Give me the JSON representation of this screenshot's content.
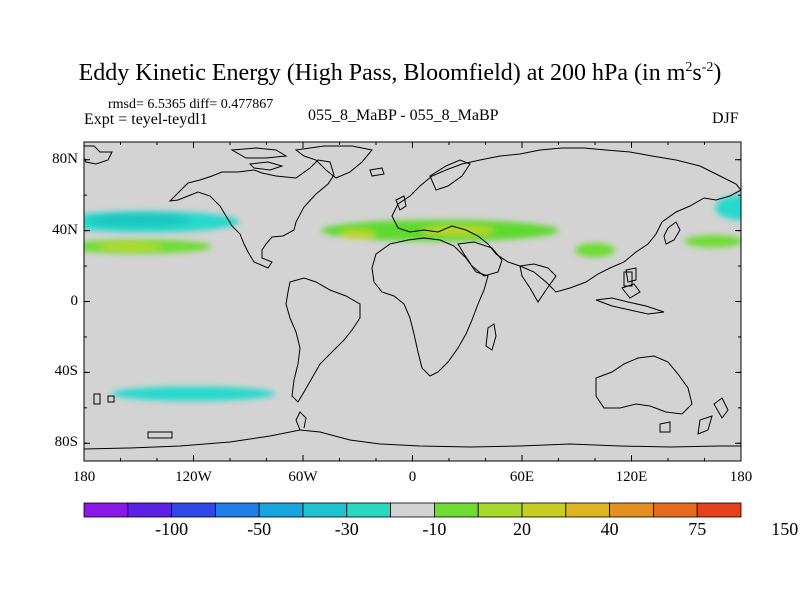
{
  "title": {
    "main": "Eddy Kinetic Energy (High Pass, Bloomfield) at 200 hPa (in m",
    "sup1": "2",
    "mid": "s",
    "sup2": "-2",
    "end": ")"
  },
  "stats": {
    "text": "rmsd= 6.5365 diff= 0.477867"
  },
  "experiment": {
    "text": "Expt = teyel-teydl1"
  },
  "case_id": {
    "text": "055_8_MaBP - 055_8_MaBP"
  },
  "season": {
    "text": "DJF"
  },
  "map": {
    "background_color": "#d3d3d3",
    "lon_range": [
      -180,
      180
    ],
    "lat_range": [
      -90,
      90
    ],
    "x_ticks": [
      {
        "lon": -180,
        "label": "180"
      },
      {
        "lon": -120,
        "label": "120W"
      },
      {
        "lon": -60,
        "label": "60W"
      },
      {
        "lon": 0,
        "label": "0"
      },
      {
        "lon": 60,
        "label": "60E"
      },
      {
        "lon": 120,
        "label": "120E"
      },
      {
        "lon": 180,
        "label": "180"
      }
    ],
    "y_ticks": [
      {
        "lat": 80,
        "label": "80N"
      },
      {
        "lat": 40,
        "label": "40N"
      },
      {
        "lat": 0,
        "label": "0"
      },
      {
        "lat": -40,
        "label": "40S"
      },
      {
        "lat": -80,
        "label": "80S"
      }
    ],
    "anomalies": [
      {
        "name": "north-pacific-cyan",
        "lon": -145,
        "lat": 45,
        "rlon": 50,
        "rlat": 6,
        "color": "#27d9cc"
      },
      {
        "name": "north-pacific-core",
        "lon": -150,
        "lat": 46,
        "rlon": 28,
        "rlat": 4,
        "color": "#1dc8c0"
      },
      {
        "name": "subtropical-pacific-green",
        "lon": -150,
        "lat": 31,
        "rlon": 40,
        "rlat": 4,
        "color": "#6fdc34"
      },
      {
        "name": "subtropical-pacific-yellow",
        "lon": -155,
        "lat": 31,
        "rlon": 18,
        "rlat": 2.2,
        "color": "#b7d92a"
      },
      {
        "name": "north-atlantic-green",
        "lon": 15,
        "lat": 40,
        "rlon": 65,
        "rlat": 6,
        "color": "#5ed92e"
      },
      {
        "name": "atlantic-yellow",
        "lon": -30,
        "lat": 38,
        "rlon": 10,
        "rlat": 2.5,
        "color": "#bcd62a"
      },
      {
        "name": "mediterranean-yellow",
        "lon": 25,
        "lat": 40,
        "rlon": 20,
        "rlat": 2.5,
        "color": "#c2d22b"
      },
      {
        "name": "east-asia-green",
        "lon": 100,
        "lat": 29,
        "rlon": 11,
        "rlat": 4,
        "color": "#6fdc34"
      },
      {
        "name": "west-pacific-green",
        "lon": 165,
        "lat": 34,
        "rlon": 16,
        "rlat": 3.5,
        "color": "#6fdc34"
      },
      {
        "name": "west-pacific-cyan",
        "lon": 180,
        "lat": 53,
        "rlon": 14,
        "rlat": 7,
        "color": "#27d9cc"
      },
      {
        "name": "southern-ocean-cyan",
        "lon": -120,
        "lat": -52,
        "rlon": 45,
        "rlat": 4,
        "color": "#27d9cc"
      }
    ]
  },
  "colorbar": {
    "colors": [
      "#8a18e8",
      "#5b22e6",
      "#2f47e6",
      "#1f7fe6",
      "#17a5dd",
      "#1ec3cf",
      "#27d9c0",
      "#d3d3d3",
      "#6fdc34",
      "#a6d92b",
      "#c6cd25",
      "#dcb520",
      "#e29020",
      "#e66a1e",
      "#e6401c"
    ],
    "labels": [
      "-100",
      "-50",
      "-30",
      "-10",
      "20",
      "40",
      "75",
      "150"
    ]
  }
}
